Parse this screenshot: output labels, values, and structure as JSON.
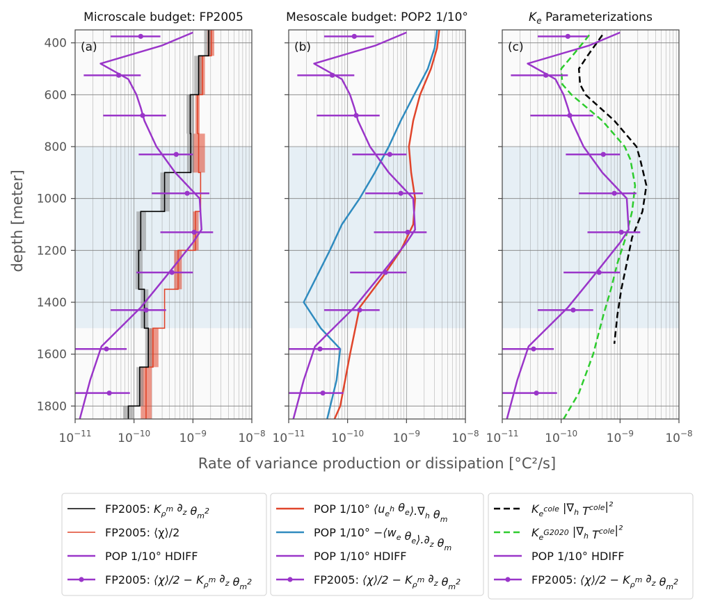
{
  "chart_data": {
    "type": "line",
    "xlabel": "Rate of variance production or dissipation [°C²/s]",
    "ylabel": "depth [meter]",
    "xscale": "log",
    "xlim": [
      1e-11,
      1e-08
    ],
    "ylim": [
      1850,
      350
    ],
    "x_ticks": [
      {
        "value": 1e-11,
        "base": "10",
        "exp": "−11"
      },
      {
        "value": 1e-10,
        "base": "10",
        "exp": "−10"
      },
      {
        "value": 1e-09,
        "base": "10",
        "exp": "−9"
      },
      {
        "value": 1e-08,
        "base": "10",
        "exp": "−8"
      }
    ],
    "y_ticks": [
      "400",
      "600",
      "800",
      "1000",
      "1200",
      "1400",
      "1600",
      "1800"
    ],
    "shaded_depth_band": [
      800,
      1500
    ],
    "colors": {
      "black": "#000000",
      "red": "#e0452b",
      "blue": "#2f8bbf",
      "purple": "#9a35c9",
      "green": "#2ecc2e",
      "band": "#e6eff5",
      "background": "#fafafa",
      "grid": "#808080"
    },
    "errorbars": {
      "depths": [
        375,
        525,
        680,
        830,
        980,
        1130,
        1285,
        1430,
        1580,
        1750
      ],
      "center": [
        1.3e-10,
        5.5e-11,
        1.4e-10,
        5.2e-10,
        8e-10,
        1.05e-09,
        4.4e-10,
        1.6e-10,
        3.4e-11,
        3.8e-11
      ],
      "low": [
        4e-11,
        1.4e-11,
        3e-11,
        1.2e-10,
        2e-10,
        2.8e-10,
        1.1e-10,
        4e-11,
        1e-11,
        1e-11
      ],
      "high": [
        2.8e-10,
        1.3e-10,
        3.5e-10,
        1e-09,
        1.9e-09,
        2.2e-09,
        1e-09,
        3.5e-10,
        7.5e-11,
        8.5e-11
      ]
    },
    "hdiff": {
      "depth": [
        360,
        410,
        480,
        540,
        600,
        650,
        700,
        800,
        900,
        1000,
        1120,
        1170,
        1300,
        1420,
        1570,
        1700,
        1850
      ],
      "x": [
        1e-09,
        3e-10,
        2.7e-11,
        8e-11,
        1.1e-10,
        1.3e-10,
        1.5e-10,
        2.4e-10,
        5e-10,
        1.3e-09,
        1.4e-09,
        1e-09,
        3.5e-10,
        1.3e-10,
        2.8e-11,
        1.8e-11,
        1.2e-11
      ]
    },
    "panels": [
      {
        "letter": "(a)",
        "title": "Microscale budget: FP2005",
        "step_uncertainty": [
          {
            "d": [
              350,
              450
            ],
            "lo": 1.75e-09,
            "hi": 2.3e-09,
            "color": "#e0452b"
          },
          {
            "d": [
              450,
              600
            ],
            "lo": 1.25e-09,
            "hi": 1.6e-09,
            "color": "#e0452b"
          },
          {
            "d": [
              600,
              750
            ],
            "lo": 1.1e-09,
            "hi": 1.3e-09,
            "color": "#e0452b"
          },
          {
            "d": [
              750,
              900
            ],
            "lo": 1e-09,
            "hi": 1.6e-09,
            "color": "#e0452b"
          },
          {
            "d": [
              1050,
              1200
            ],
            "lo": 1e-09,
            "hi": 1.25e-09,
            "color": "#e0452b"
          },
          {
            "d": [
              1200,
              1350
            ],
            "lo": 4.8e-10,
            "hi": 6.5e-10,
            "color": "#e0452b"
          },
          {
            "d": [
              1500,
              1650
            ],
            "lo": 1.8e-10,
            "hi": 2.6e-10,
            "color": "#e0452b"
          },
          {
            "d": [
              1650,
              1850
            ],
            "lo": 1.3e-10,
            "hi": 2e-10,
            "color": "#e0452b"
          },
          {
            "d": [
              350,
              450
            ],
            "lo": 1.55e-09,
            "hi": 2.1e-09,
            "color": "#888888"
          },
          {
            "d": [
              450,
              600
            ],
            "lo": 1.05e-09,
            "hi": 1.4e-09,
            "color": "#888888"
          },
          {
            "d": [
              600,
              750
            ],
            "lo": 7.8e-10,
            "hi": 1.05e-09,
            "color": "#888888"
          },
          {
            "d": [
              750,
              900
            ],
            "lo": 8e-10,
            "hi": 1.05e-09,
            "color": "#888888"
          },
          {
            "d": [
              900,
              1050
            ],
            "lo": 2.8e-10,
            "hi": 4e-10,
            "color": "#888888"
          },
          {
            "d": [
              1050,
              1200
            ],
            "lo": 1.1e-10,
            "hi": 1.6e-10,
            "color": "#888888"
          },
          {
            "d": [
              1200,
              1350
            ],
            "lo": 1.05e-10,
            "hi": 1.4e-10,
            "color": "#888888"
          },
          {
            "d": [
              1350,
              1500
            ],
            "lo": 1.3e-10,
            "hi": 1.75e-10,
            "color": "#888888"
          },
          {
            "d": [
              1500,
              1650
            ],
            "lo": 1.55e-10,
            "hi": 2e-10,
            "color": "#888888"
          },
          {
            "d": [
              1650,
              1800
            ],
            "lo": 1.1e-10,
            "hi": 1.45e-10,
            "color": "#888888"
          },
          {
            "d": [
              1800,
              1850
            ],
            "lo": 6.5e-11,
            "hi": 1e-10,
            "color": "#888888"
          }
        ],
        "series": [
          {
            "kind": "step",
            "color": "#e0452b",
            "width": 1.6,
            "levels": [
              350,
              450,
              600,
              750,
              900,
              1050,
              1200,
              1350,
              1500,
              1650,
              1850
            ],
            "values": [
              2.05e-09,
              1.45e-09,
              1.2e-09,
              1.25e-09,
              1.35e-09,
              1.1e-09,
              5.6e-10,
              3.3e-10,
              2.1e-10,
              1.6e-10
            ]
          },
          {
            "kind": "step",
            "color": "#000000",
            "width": 1.6,
            "levels": [
              350,
              450,
              600,
              750,
              900,
              1050,
              1200,
              1350,
              1500,
              1650,
              1800,
              1850
            ],
            "values": [
              1.85e-09,
              1.25e-09,
              9e-10,
              9.2e-10,
              3.3e-10,
              1.3e-10,
              1.2e-10,
              1.5e-10,
              1.75e-10,
              1.25e-10,
              8e-11
            ]
          },
          {
            "kind": "hdiff"
          },
          {
            "kind": "errorbars"
          }
        ]
      },
      {
        "letter": "(b)",
        "title": "Mesoscale budget: POP2 1/10°",
        "series": [
          {
            "kind": "line",
            "color": "#e0452b",
            "width": 2.5,
            "depth": [
              350,
              420,
              500,
              600,
              700,
              800,
              900,
              1000,
              1100,
              1200,
              1300,
              1420,
              1600,
              1800,
              1850
            ],
            "x": [
              3.6e-09,
              3.3e-09,
              2.6e-09,
              1.7e-09,
              1.3e-09,
              1.1e-09,
              1.2e-09,
              1.4e-09,
              1.3e-09,
              8e-10,
              4e-10,
              1.6e-10,
              1.1e-10,
              7.5e-11,
              6e-11
            ]
          },
          {
            "kind": "line",
            "color": "#2f8bbf",
            "width": 2.5,
            "depth": [
              350,
              420,
              500,
              600,
              700,
              800,
              900,
              1000,
              1100,
              1200,
              1300,
              1400,
              1500,
              1580,
              1700,
              1850
            ],
            "x": [
              3.3e-09,
              3e-09,
              2.3e-09,
              1.35e-09,
              8e-10,
              5e-10,
              2.9e-10,
              1.6e-10,
              8e-11,
              5e-11,
              3e-11,
              1.8e-11,
              3.5e-11,
              7.5e-11,
              6.5e-11,
              4.5e-11
            ]
          },
          {
            "kind": "hdiff"
          },
          {
            "kind": "errorbars"
          }
        ]
      },
      {
        "letter": "(c)",
        "title_pre": "K",
        "title_sub": "e",
        "title_post": " Parameterizations",
        "series": [
          {
            "kind": "line",
            "color": "#000000",
            "width": 2.5,
            "dash": "9 5",
            "depth": [
              370,
              450,
              500,
              560,
              600,
              700,
              800,
              850,
              950,
              1050,
              1150,
              1250,
              1350,
              1450,
              1560
            ],
            "x": [
              5e-10,
              2.8e-10,
              2e-10,
              2.1e-10,
              2.6e-10,
              8e-10,
              1.9e-09,
              2.2e-09,
              2.8e-09,
              2.4e-09,
              1.6e-09,
              1.3e-09,
              1.05e-09,
              9e-10,
              8e-10
            ]
          },
          {
            "kind": "line",
            "color": "#2ecc2e",
            "width": 2.5,
            "dash": "9 5",
            "depth": [
              370,
              450,
              500,
              560,
              600,
              700,
              800,
              850,
              950,
              1050,
              1150,
              1250,
              1350,
              1450,
              1600,
              1750,
              1850
            ],
            "x": [
              3e-10,
              1.55e-10,
              1e-10,
              1.05e-10,
              1.5e-10,
              5e-10,
              1.2e-09,
              1.5e-09,
              1.8e-09,
              1.6e-09,
              1.25e-09,
              9e-10,
              7e-10,
              5.2e-10,
              3.5e-10,
              2e-10,
              1.1e-10
            ]
          },
          {
            "kind": "hdiff"
          },
          {
            "kind": "errorbars"
          }
        ]
      }
    ],
    "legends": [
      {
        "entries": [
          {
            "kind": "line",
            "color": "#000000",
            "width": 1.6,
            "label_pre": "FP2005: ",
            "label_tex": "K_ρ^m ∂_z θ_m^2"
          },
          {
            "kind": "line",
            "color": "#e0452b",
            "width": 1.6,
            "label_pre": "FP2005: ⟨χ⟩/2",
            "label_tex": ""
          },
          {
            "kind": "line",
            "color": "#9a35c9",
            "width": 2.5,
            "label_pre": "POP 1/10° HDIFF",
            "label_tex": ""
          },
          {
            "kind": "errorbar",
            "color": "#9a35c9",
            "width": 2.5,
            "label_pre": "FP2005: ",
            "label_tex": "⟨χ⟩/2 − K_ρ^m ∂_z θ_m^2"
          }
        ]
      },
      {
        "entries": [
          {
            "kind": "line",
            "color": "#e0452b",
            "width": 2.5,
            "label_pre": "POP 1/10° ",
            "label_tex": "⟨u_e^h θ_e⟩.∇_h θ_m"
          },
          {
            "kind": "line",
            "color": "#2f8bbf",
            "width": 2.5,
            "label_pre": "POP 1/10° ",
            "label_tex": "−⟨w_e θ_e⟩.∂_z θ_m"
          },
          {
            "kind": "line",
            "color": "#9a35c9",
            "width": 2.5,
            "label_pre": "POP 1/10° HDIFF",
            "label_tex": ""
          },
          {
            "kind": "errorbar",
            "color": "#9a35c9",
            "width": 2.5,
            "label_pre": "FP2005: ",
            "label_tex": "⟨χ⟩/2 − K_ρ^m ∂_z θ_m^2"
          }
        ]
      },
      {
        "entries": [
          {
            "kind": "dashed",
            "color": "#000000",
            "width": 2.5,
            "label_pre": "",
            "label_tex": "K_e^cole |∇_h T^cole|²"
          },
          {
            "kind": "dashed",
            "color": "#2ecc2e",
            "width": 2.5,
            "label_pre": "",
            "label_tex": "K_e^G2020 |∇_h T^cole|²"
          },
          {
            "kind": "line",
            "color": "#9a35c9",
            "width": 2.5,
            "label_pre": "POP 1/10° HDIFF",
            "label_tex": ""
          },
          {
            "kind": "errorbar",
            "color": "#9a35c9",
            "width": 2.5,
            "label_pre": "FP2005: ",
            "label_tex": "⟨χ⟩/2 − K_ρ^m ∂_z θ_m^2"
          }
        ]
      }
    ]
  }
}
